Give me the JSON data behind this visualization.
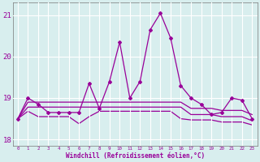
{
  "xlabel": "Windchill (Refroidissement éolien,°C)",
  "hours": [
    0,
    1,
    2,
    3,
    4,
    5,
    6,
    7,
    8,
    9,
    10,
    11,
    12,
    13,
    14,
    15,
    16,
    17,
    18,
    19,
    20,
    21,
    22,
    23
  ],
  "line1": [
    18.5,
    19.0,
    18.85,
    18.65,
    18.65,
    18.65,
    18.65,
    19.35,
    18.75,
    19.4,
    20.35,
    19.0,
    19.4,
    20.65,
    21.05,
    20.45,
    19.3,
    19.0,
    18.85,
    18.6,
    18.65,
    19.0,
    18.95,
    18.5
  ],
  "line2": [
    18.5,
    18.9,
    18.9,
    18.9,
    18.9,
    18.9,
    18.9,
    18.9,
    18.9,
    18.9,
    18.9,
    18.9,
    18.9,
    18.9,
    18.9,
    18.9,
    18.9,
    18.75,
    18.75,
    18.75,
    18.7,
    18.7,
    18.7,
    18.6
  ],
  "line3": [
    18.5,
    18.78,
    18.78,
    18.78,
    18.78,
    18.78,
    18.78,
    18.78,
    18.78,
    18.78,
    18.78,
    18.78,
    18.78,
    18.78,
    18.78,
    18.78,
    18.78,
    18.6,
    18.6,
    18.6,
    18.55,
    18.55,
    18.55,
    18.45
  ],
  "line4": [
    18.5,
    18.68,
    18.55,
    18.55,
    18.55,
    18.55,
    18.38,
    18.55,
    18.68,
    18.68,
    18.68,
    18.68,
    18.68,
    18.68,
    18.68,
    18.68,
    18.5,
    18.47,
    18.47,
    18.47,
    18.42,
    18.42,
    18.42,
    18.35
  ],
  "line_color": "#990099",
  "bg_color": "#d8eeee",
  "grid_color": "#b0d8d8",
  "text_color": "#990099",
  "ylim": [
    17.85,
    21.3
  ],
  "yticks": [
    18,
    19,
    20,
    21
  ]
}
